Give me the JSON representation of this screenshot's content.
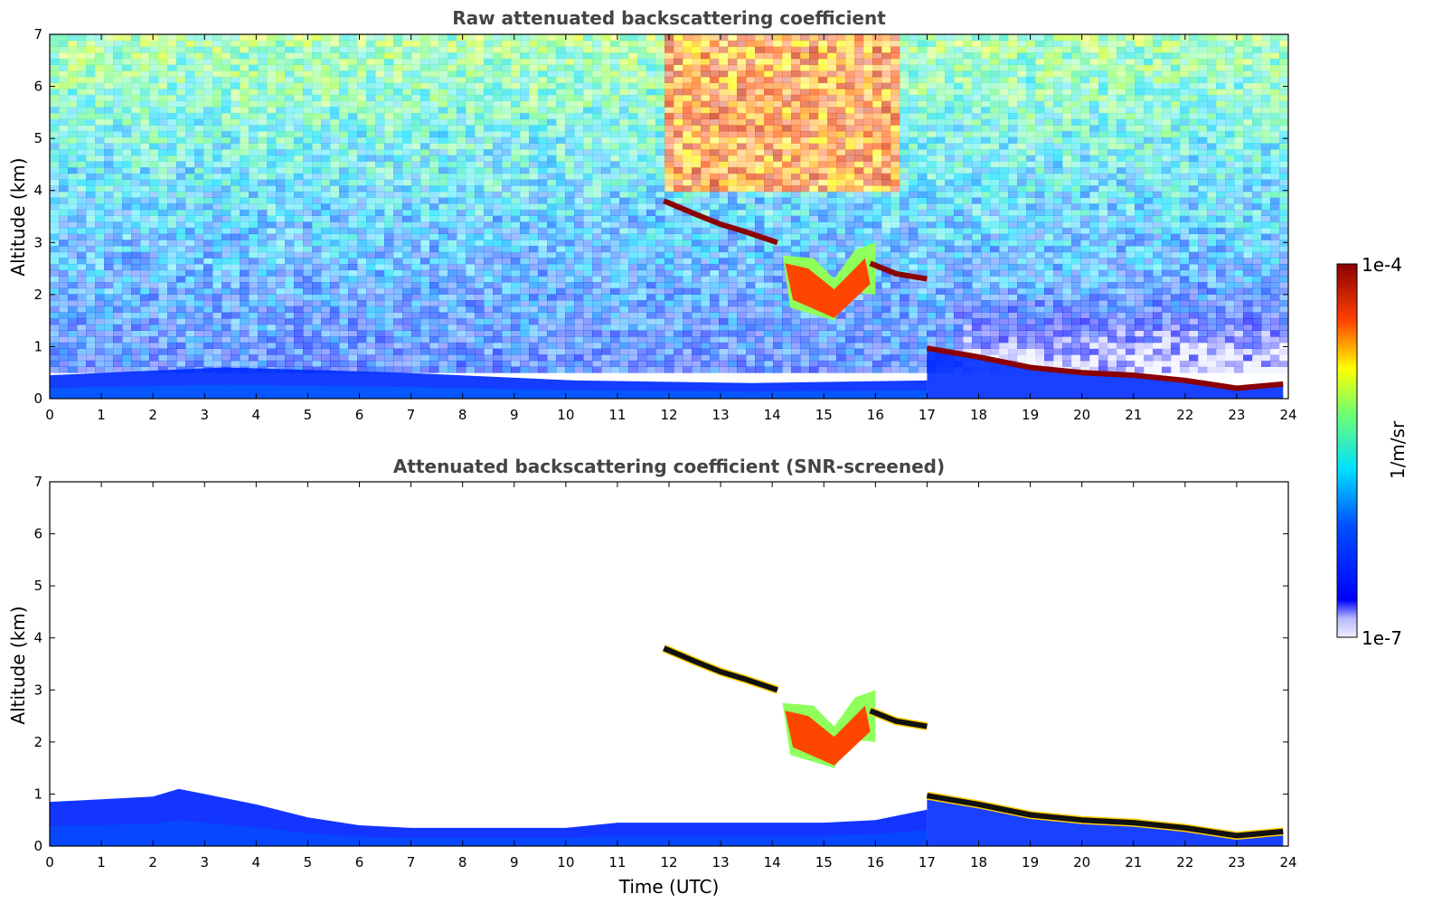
{
  "chart_data": [
    {
      "type": "heatmap",
      "title": "Raw attenuated backscattering coefficient",
      "xlabel": "",
      "ylabel": "Altitude (km)",
      "xlim": [
        0,
        24
      ],
      "ylim": [
        0,
        7
      ],
      "xticks": [
        0,
        1,
        2,
        3,
        4,
        5,
        6,
        7,
        8,
        9,
        10,
        11,
        12,
        13,
        14,
        15,
        16,
        17,
        18,
        19,
        20,
        21,
        22,
        23,
        24
      ],
      "yticks": [
        0,
        1,
        2,
        3,
        4,
        5,
        6,
        7
      ],
      "features": [
        {
          "label": "boundary-layer",
          "x": [
            0,
            17
          ],
          "y_top": [
            0.45,
            0.6,
            0.5,
            0.35,
            0.3,
            0.35
          ],
          "level": 0.22
        },
        {
          "label": "cloud-layer-high",
          "x": [
            11.9,
            12.5,
            13.0,
            13.5,
            14.1
          ],
          "y": [
            3.8,
            3.55,
            3.35,
            3.2,
            3.0
          ],
          "level": 1.0
        },
        {
          "label": "cloud-layer-mid",
          "x": [
            15.9,
            16.4,
            17.0
          ],
          "y": [
            2.6,
            2.4,
            2.3
          ],
          "level": 1.0
        },
        {
          "label": "aerosol-plume",
          "x": [
            14.2,
            15.2,
            16.0
          ],
          "y": [
            2.6,
            1.5,
            2.3
          ],
          "level": 0.7
        },
        {
          "label": "low-cloud",
          "x": [
            17.0,
            18.0,
            19.0,
            20.0,
            21.0,
            22.0,
            23.0,
            23.9
          ],
          "y": [
            0.97,
            0.8,
            0.6,
            0.5,
            0.45,
            0.35,
            0.2,
            0.28
          ],
          "level": 1.0
        },
        {
          "label": "noise-region",
          "x": [
            0,
            24
          ],
          "y": [
            0.5,
            7.0
          ],
          "level_low": 0.25,
          "level_high": 0.6
        },
        {
          "label": "high-noise-region",
          "x": [
            11.9,
            16.5
          ],
          "y": [
            4.0,
            7.0
          ],
          "level": 0.9
        }
      ]
    },
    {
      "type": "heatmap",
      "title": "Attenuated backscattering coefficient (SNR-screened)",
      "xlabel": "Time (UTC)",
      "ylabel": "Altitude (km)",
      "xlim": [
        0,
        24
      ],
      "ylim": [
        0,
        7
      ],
      "xticks": [
        0,
        1,
        2,
        3,
        4,
        5,
        6,
        7,
        8,
        9,
        10,
        11,
        12,
        13,
        14,
        15,
        16,
        17,
        18,
        19,
        20,
        21,
        22,
        23,
        24
      ],
      "yticks": [
        0,
        1,
        2,
        3,
        4,
        5,
        6,
        7
      ],
      "features": [
        {
          "label": "boundary-layer",
          "x": [
            0,
            1,
            2,
            2.5,
            3,
            4,
            5,
            6,
            7,
            8,
            9,
            10,
            11,
            12,
            13,
            14,
            15,
            16,
            17
          ],
          "y_top": [
            0.85,
            0.9,
            0.95,
            1.1,
            1.0,
            0.8,
            0.55,
            0.4,
            0.35,
            0.35,
            0.35,
            0.35,
            0.45,
            0.45,
            0.45,
            0.45,
            0.45,
            0.5,
            0.7
          ],
          "level": 0.2
        },
        {
          "label": "cloud-layer-high",
          "x": [
            11.9,
            12.5,
            13.0,
            13.5,
            14.1
          ],
          "y": [
            3.8,
            3.55,
            3.35,
            3.2,
            3.0
          ],
          "level": 1.0
        },
        {
          "label": "cloud-layer-mid",
          "x": [
            15.9,
            16.4,
            17.0
          ],
          "y": [
            2.6,
            2.4,
            2.3
          ],
          "level": 1.0
        },
        {
          "label": "aerosol-plume",
          "x": [
            14.2,
            15.2,
            16.0
          ],
          "y": [
            2.6,
            1.5,
            2.3
          ],
          "level": 0.7
        },
        {
          "label": "low-cloud",
          "x": [
            17.0,
            18.0,
            19.0,
            20.0,
            21.0,
            22.0,
            23.0,
            23.9
          ],
          "y": [
            0.97,
            0.8,
            0.6,
            0.5,
            0.45,
            0.35,
            0.2,
            0.28
          ],
          "level": 1.0
        }
      ]
    }
  ],
  "colorbar": {
    "label": "1/m/sr",
    "max_label": "1e-4",
    "min_label": "1e-7",
    "colormap": "jet",
    "colors": [
      "#ffffff",
      "#0000ff",
      "#00ffff",
      "#ffff00",
      "#ff0000",
      "#7f0000"
    ]
  }
}
